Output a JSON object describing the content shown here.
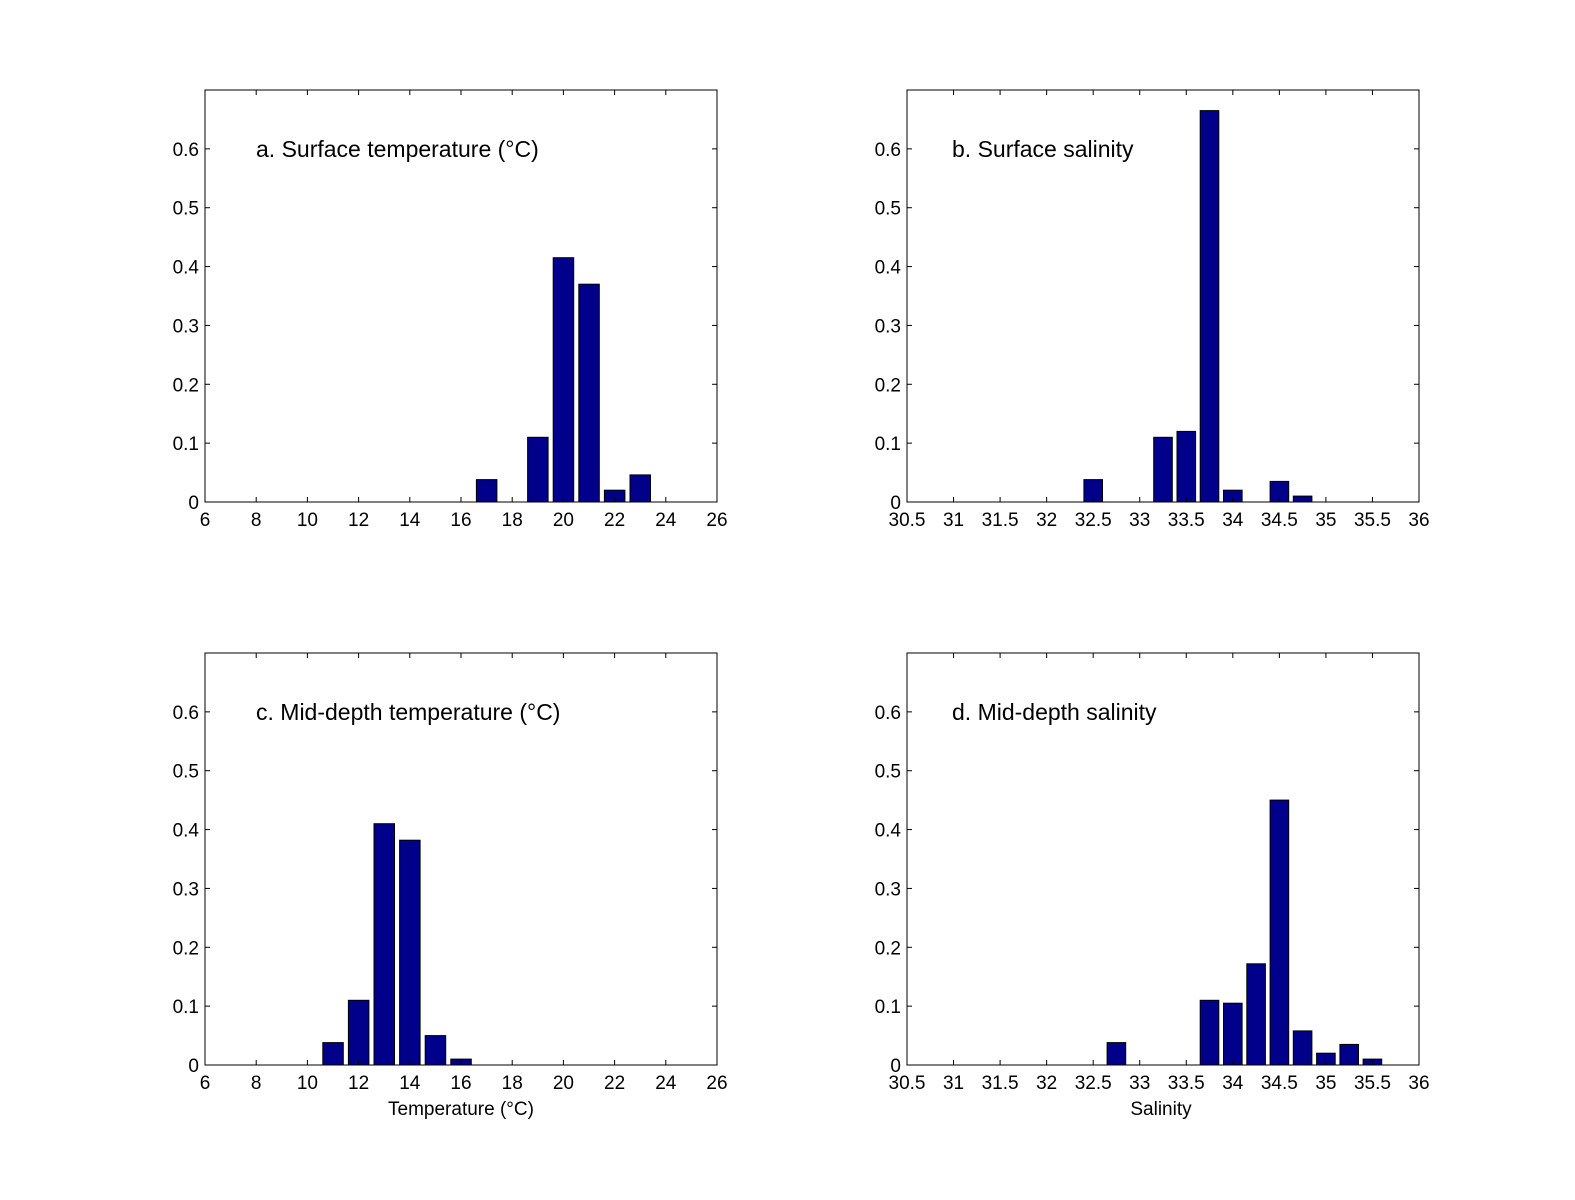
{
  "chart_data": [
    {
      "type": "bar",
      "title": "a. Surface temperature (°C)",
      "xlabel": "",
      "ylabel": "",
      "xlim": [
        6,
        26
      ],
      "ylim": [
        0,
        0.7
      ],
      "xticks": [
        6,
        8,
        10,
        12,
        14,
        16,
        18,
        20,
        22,
        24,
        26
      ],
      "yticks": [
        0,
        0.1,
        0.2,
        0.3,
        0.4,
        0.5,
        0.6
      ],
      "xtick_labels": [
        "6",
        "8",
        "10",
        "12",
        "14",
        "16",
        "18",
        "20",
        "22",
        "24",
        "26"
      ],
      "ytick_labels": [
        "0",
        "0.1",
        "0.2",
        "0.3",
        "0.4",
        "0.5",
        "0.6"
      ],
      "bar_width": 0.8,
      "x": [
        17,
        19,
        20,
        21,
        22,
        23
      ],
      "values": [
        0.038,
        0.11,
        0.415,
        0.37,
        0.02,
        0.046
      ],
      "bar_color": "#00008b",
      "grid": false
    },
    {
      "type": "bar",
      "title": "b. Surface salinity",
      "xlabel": "",
      "ylabel": "",
      "xlim": [
        30.5,
        36
      ],
      "ylim": [
        0,
        0.7
      ],
      "xticks": [
        30.5,
        31,
        31.5,
        32,
        32.5,
        33,
        33.5,
        34,
        34.5,
        35,
        35.5,
        36
      ],
      "yticks": [
        0,
        0.1,
        0.2,
        0.3,
        0.4,
        0.5,
        0.6
      ],
      "xtick_labels": [
        "30.5",
        "31",
        "31.5",
        "32",
        "32.5",
        "33",
        "33.5",
        "34",
        "34.5",
        "35",
        "35.5",
        "36"
      ],
      "ytick_labels": [
        "0",
        "0.1",
        "0.2",
        "0.3",
        "0.4",
        "0.5",
        "0.6"
      ],
      "bar_width": 0.2,
      "x": [
        32.5,
        33.25,
        33.5,
        33.75,
        34.0,
        34.5,
        34.75
      ],
      "values": [
        0.038,
        0.11,
        0.12,
        0.665,
        0.02,
        0.035,
        0.01
      ],
      "bar_color": "#00008b",
      "grid": false
    },
    {
      "type": "bar",
      "title": "c. Mid-depth temperature (°C)",
      "xlabel": "Temperature (°C)",
      "ylabel": "",
      "xlim": [
        6,
        26
      ],
      "ylim": [
        0,
        0.7
      ],
      "xticks": [
        6,
        8,
        10,
        12,
        14,
        16,
        18,
        20,
        22,
        24,
        26
      ],
      "yticks": [
        0,
        0.1,
        0.2,
        0.3,
        0.4,
        0.5,
        0.6
      ],
      "xtick_labels": [
        "6",
        "8",
        "10",
        "12",
        "14",
        "16",
        "18",
        "20",
        "22",
        "24",
        "26"
      ],
      "ytick_labels": [
        "0",
        "0.1",
        "0.2",
        "0.3",
        "0.4",
        "0.5",
        "0.6"
      ],
      "bar_width": 0.8,
      "x": [
        11,
        12,
        13,
        14,
        15,
        16
      ],
      "values": [
        0.038,
        0.11,
        0.41,
        0.382,
        0.05,
        0.01
      ],
      "bar_color": "#00008b",
      "grid": false
    },
    {
      "type": "bar",
      "title": "d. Mid-depth salinity",
      "xlabel": "Salinity",
      "ylabel": "",
      "xlim": [
        30.5,
        36
      ],
      "ylim": [
        0,
        0.7
      ],
      "xticks": [
        30.5,
        31,
        31.5,
        32,
        32.5,
        33,
        33.5,
        34,
        34.5,
        35,
        35.5,
        36
      ],
      "yticks": [
        0,
        0.1,
        0.2,
        0.3,
        0.4,
        0.5,
        0.6
      ],
      "xtick_labels": [
        "30.5",
        "31",
        "31.5",
        "32",
        "32.5",
        "33",
        "33.5",
        "34",
        "34.5",
        "35",
        "35.5",
        "36"
      ],
      "ytick_labels": [
        "0",
        "0.1",
        "0.2",
        "0.3",
        "0.4",
        "0.5",
        "0.6"
      ],
      "bar_width": 0.2,
      "x": [
        32.75,
        33.75,
        34.0,
        34.25,
        34.5,
        34.75,
        35.0,
        35.25,
        35.5
      ],
      "values": [
        0.038,
        0.11,
        0.105,
        0.172,
        0.45,
        0.058,
        0.02,
        0.035,
        0.01
      ],
      "bar_color": "#00008b",
      "grid": false
    }
  ]
}
